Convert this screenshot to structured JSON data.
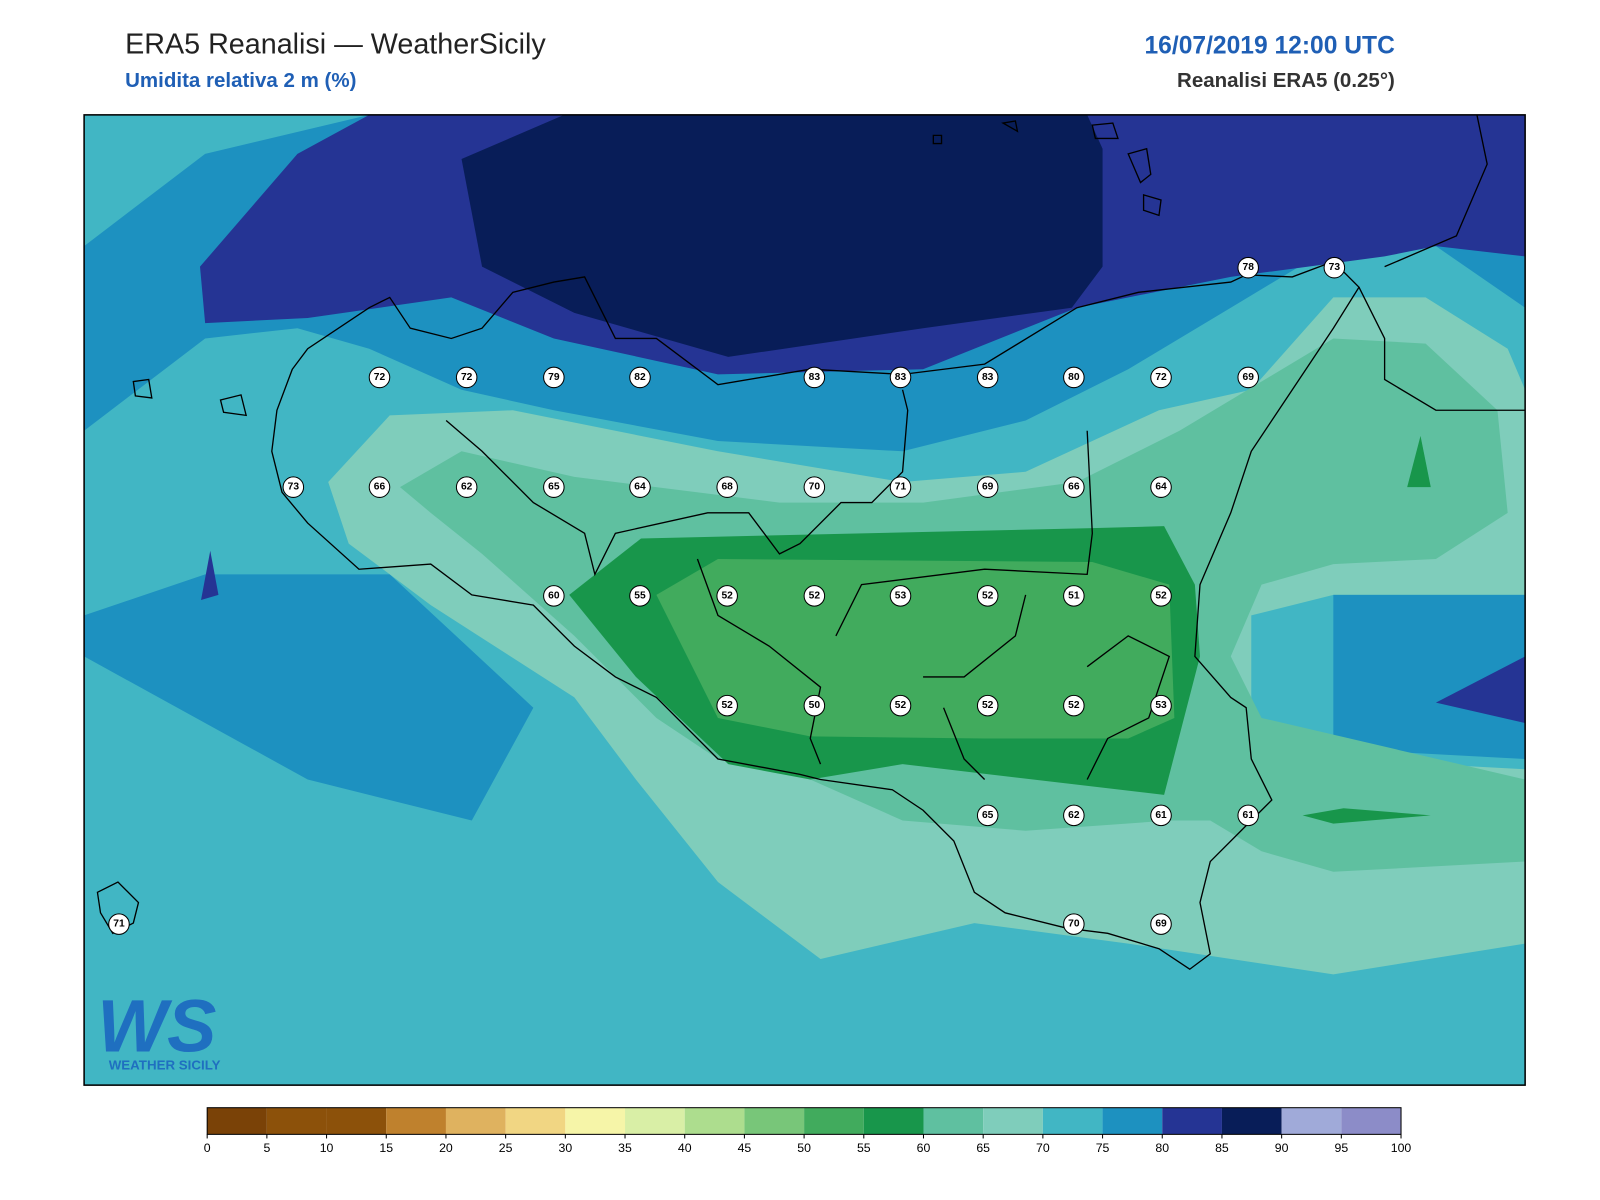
{
  "header": {
    "title": "ERA5 Reanalisi — WeatherSicily",
    "subtitle": "Umidita relativa 2 m (%)",
    "datetime": "16/07/2019 12:00 UTC",
    "source": "Reanalisi ERA5 (0.25°)"
  },
  "logo": {
    "mark": "WS",
    "text": "WEATHER SICILY"
  },
  "stations": [
    78,
    73,
    72,
    72,
    79,
    82,
    83,
    83,
    83,
    80,
    72,
    69,
    73,
    66,
    62,
    65,
    64,
    68,
    70,
    71,
    69,
    66,
    64,
    60,
    55,
    52,
    52,
    53,
    52,
    51,
    52,
    52,
    50,
    52,
    52,
    52,
    53,
    65,
    62,
    61,
    61,
    71,
    70,
    69
  ],
  "colorbar": {
    "ticks": [
      0,
      5,
      10,
      15,
      20,
      25,
      30,
      35,
      40,
      45,
      50,
      55,
      60,
      65,
      70,
      75,
      80,
      85,
      90,
      95,
      100
    ],
    "colors": [
      "#7a4207",
      "#8c510a",
      "#8c510a",
      "#bf812d",
      "#dfb25f",
      "#f1d683",
      "#f6f5a8",
      "#d9efa6",
      "#addd8e",
      "#78c679",
      "#41ab5d",
      "#18964b",
      "#5fc0a0",
      "#7fcdbb",
      "#41b6c4",
      "#1d91c0",
      "#253494",
      "#081d58",
      "#a0aad9",
      "#8c8cc8"
    ]
  }
}
